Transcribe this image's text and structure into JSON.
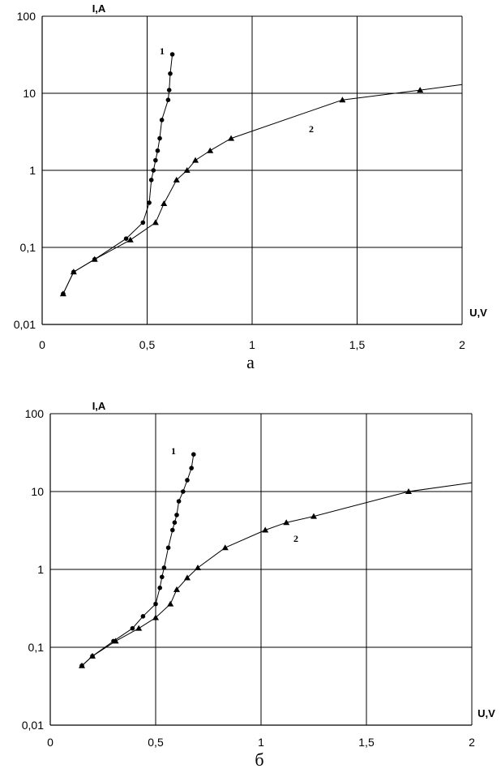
{
  "chart_data": [
    {
      "type": "line",
      "panel_label": "а",
      "xlabel": "U,V",
      "ylabel": "I,A",
      "xlim": [
        0,
        2
      ],
      "ylim": [
        0.01,
        100
      ],
      "y_scale": "log",
      "grid": true,
      "x_ticks": [
        "0",
        "0,5",
        "1",
        "1,5",
        "2"
      ],
      "y_ticks": [
        "0,01",
        "0,1",
        "1",
        "10",
        "100"
      ],
      "series": [
        {
          "name": "1",
          "marker": "circle",
          "x": [
            0.1,
            0.15,
            0.25,
            0.4,
            0.48,
            0.51,
            0.52,
            0.53,
            0.54,
            0.55,
            0.56,
            0.57,
            0.6,
            0.605,
            0.61,
            0.62
          ],
          "y": [
            0.025,
            0.048,
            0.07,
            0.13,
            0.21,
            0.38,
            0.75,
            1.0,
            1.35,
            1.8,
            2.6,
            4.5,
            8.2,
            11,
            18,
            32
          ]
        },
        {
          "name": "2",
          "marker": "triangle",
          "x": [
            0.1,
            0.15,
            0.25,
            0.42,
            0.54,
            0.58,
            0.64,
            0.69,
            0.73,
            0.8,
            0.9,
            1.43,
            1.8,
            2.0
          ],
          "y": [
            0.025,
            0.048,
            0.07,
            0.125,
            0.21,
            0.37,
            0.75,
            1.0,
            1.35,
            1.8,
            2.6,
            8.2,
            11,
            13
          ],
          "markers_end": 13
        }
      ]
    },
    {
      "type": "line",
      "panel_label": "б",
      "xlabel": "U,V",
      "ylabel": "I,A",
      "xlim": [
        0,
        2
      ],
      "ylim": [
        0.01,
        100
      ],
      "y_scale": "log",
      "grid": true,
      "x_ticks": [
        "0",
        "0,5",
        "1",
        "1,5",
        "2"
      ],
      "y_ticks": [
        "0,01",
        "0,1",
        "1",
        "10",
        "100"
      ],
      "series": [
        {
          "name": "1",
          "marker": "circle",
          "x": [
            0.15,
            0.2,
            0.3,
            0.39,
            0.44,
            0.5,
            0.52,
            0.53,
            0.54,
            0.56,
            0.58,
            0.59,
            0.6,
            0.61,
            0.63,
            0.65,
            0.67,
            0.68
          ],
          "y": [
            0.058,
            0.077,
            0.12,
            0.175,
            0.25,
            0.36,
            0.58,
            0.8,
            1.05,
            1.9,
            3.2,
            4.0,
            5.0,
            7.5,
            10,
            14,
            20,
            30
          ],
          "markers_end": 18
        },
        {
          "name": "2",
          "marker": "triangle",
          "x": [
            0.15,
            0.2,
            0.31,
            0.42,
            0.5,
            0.57,
            0.6,
            0.65,
            0.7,
            0.83,
            1.02,
            1.12,
            1.25,
            1.7,
            2.0
          ],
          "y": [
            0.058,
            0.077,
            0.12,
            0.175,
            0.24,
            0.36,
            0.55,
            0.78,
            1.05,
            1.9,
            3.2,
            4.0,
            4.8,
            10,
            13
          ],
          "markers_end": 14
        }
      ]
    }
  ]
}
